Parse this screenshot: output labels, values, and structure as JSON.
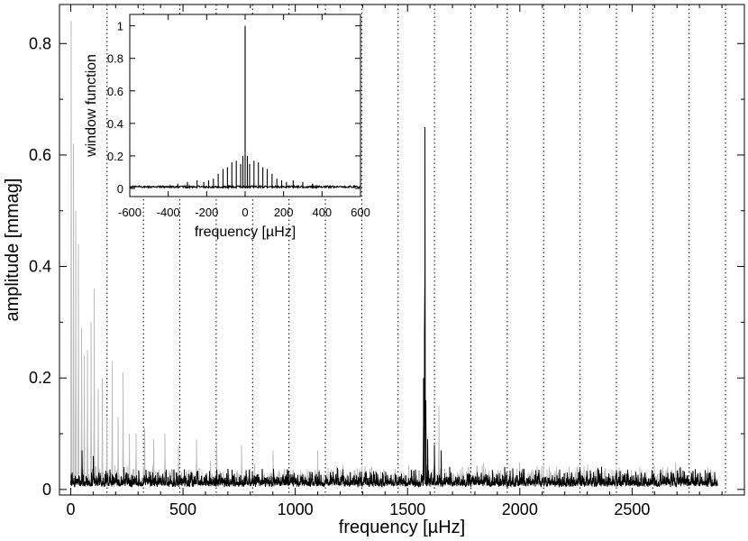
{
  "chart_data": {
    "type": "line",
    "xlabel": "frequency [µHz]",
    "ylabel": "amplitude [mmag]",
    "xlim": [
      -50,
      3000
    ],
    "ylim": [
      -0.01,
      0.87
    ],
    "xticks": [
      0,
      500,
      1000,
      1500,
      2000,
      2500
    ],
    "yticks": [
      0,
      0.2,
      0.4,
      0.6,
      0.8
    ],
    "grid": false,
    "reference_lines_x": [
      162,
      324,
      486,
      648,
      810,
      972,
      1134,
      1296,
      1458,
      1620,
      1782,
      1944,
      2106,
      2268,
      2430,
      2592,
      2754,
      2916
    ],
    "series": [
      {
        "color": "#bbbbbb",
        "noise_level": 0.03,
        "x_range": [
          0,
          2880
        ],
        "peaks": [
          {
            "x": 2,
            "y": 0.84
          },
          {
            "x": 12,
            "y": 0.62
          },
          {
            "x": 22,
            "y": 0.5
          },
          {
            "x": 35,
            "y": 0.44
          },
          {
            "x": 48,
            "y": 0.29
          },
          {
            "x": 60,
            "y": 0.24
          },
          {
            "x": 75,
            "y": 0.25
          },
          {
            "x": 90,
            "y": 0.3
          },
          {
            "x": 105,
            "y": 0.36
          },
          {
            "x": 122,
            "y": 0.18
          },
          {
            "x": 140,
            "y": 0.2
          },
          {
            "x": 160,
            "y": 0.13
          },
          {
            "x": 185,
            "y": 0.23
          },
          {
            "x": 210,
            "y": 0.13
          },
          {
            "x": 232,
            "y": 0.21
          },
          {
            "x": 260,
            "y": 0.1
          },
          {
            "x": 290,
            "y": 0.1
          },
          {
            "x": 330,
            "y": 0.11
          },
          {
            "x": 370,
            "y": 0.09
          },
          {
            "x": 420,
            "y": 0.1
          },
          {
            "x": 480,
            "y": 0.08
          },
          {
            "x": 560,
            "y": 0.09
          },
          {
            "x": 650,
            "y": 0.08
          },
          {
            "x": 760,
            "y": 0.08
          },
          {
            "x": 900,
            "y": 0.07
          },
          {
            "x": 1100,
            "y": 0.07
          },
          {
            "x": 1640,
            "y": 0.15
          }
        ]
      },
      {
        "color": "#000000",
        "noise_level": 0.025,
        "x_range": [
          0,
          2880
        ],
        "peaks": [
          {
            "x": 1578,
            "y": 0.65
          },
          {
            "x": 1575,
            "y": 0.28
          },
          {
            "x": 1572,
            "y": 0.2
          },
          {
            "x": 1582,
            "y": 0.16
          },
          {
            "x": 1590,
            "y": 0.09
          },
          {
            "x": 1620,
            "y": 0.08
          },
          {
            "x": 1650,
            "y": 0.07
          },
          {
            "x": 50,
            "y": 0.07
          },
          {
            "x": 100,
            "y": 0.06
          }
        ]
      }
    ],
    "inset": {
      "type": "line",
      "xlabel": "frequency [µHz]",
      "ylabel": "window function",
      "xlim": [
        -600,
        600
      ],
      "ylim": [
        -0.05,
        1.07
      ],
      "xticks": [
        -600,
        -400,
        -200,
        0,
        200,
        400,
        600
      ],
      "yticks": [
        0,
        0.2,
        0.4,
        0.6,
        0.8,
        1
      ],
      "peaks": [
        {
          "x": 0,
          "y": 1.0
        },
        {
          "x": -11.6,
          "y": 0.2
        },
        {
          "x": 11.6,
          "y": 0.2
        },
        {
          "x": -23.2,
          "y": 0.15
        },
        {
          "x": 23.2,
          "y": 0.15
        },
        {
          "x": -46,
          "y": 0.17
        },
        {
          "x": 46,
          "y": 0.17
        },
        {
          "x": -69,
          "y": 0.16
        },
        {
          "x": 69,
          "y": 0.16
        },
        {
          "x": -92,
          "y": 0.13
        },
        {
          "x": 92,
          "y": 0.13
        },
        {
          "x": -115,
          "y": 0.12
        },
        {
          "x": 115,
          "y": 0.12
        },
        {
          "x": -140,
          "y": 0.09
        },
        {
          "x": 140,
          "y": 0.09
        },
        {
          "x": -165,
          "y": 0.06
        },
        {
          "x": 165,
          "y": 0.06
        },
        {
          "x": -190,
          "y": 0.05
        },
        {
          "x": 190,
          "y": 0.05
        },
        {
          "x": -215,
          "y": 0.04
        },
        {
          "x": 215,
          "y": 0.04
        },
        {
          "x": -250,
          "y": 0.05
        },
        {
          "x": 250,
          "y": 0.05
        },
        {
          "x": -300,
          "y": 0.04
        },
        {
          "x": 300,
          "y": 0.04
        },
        {
          "x": -350,
          "y": 0.03
        },
        {
          "x": 350,
          "y": 0.03
        }
      ]
    }
  }
}
